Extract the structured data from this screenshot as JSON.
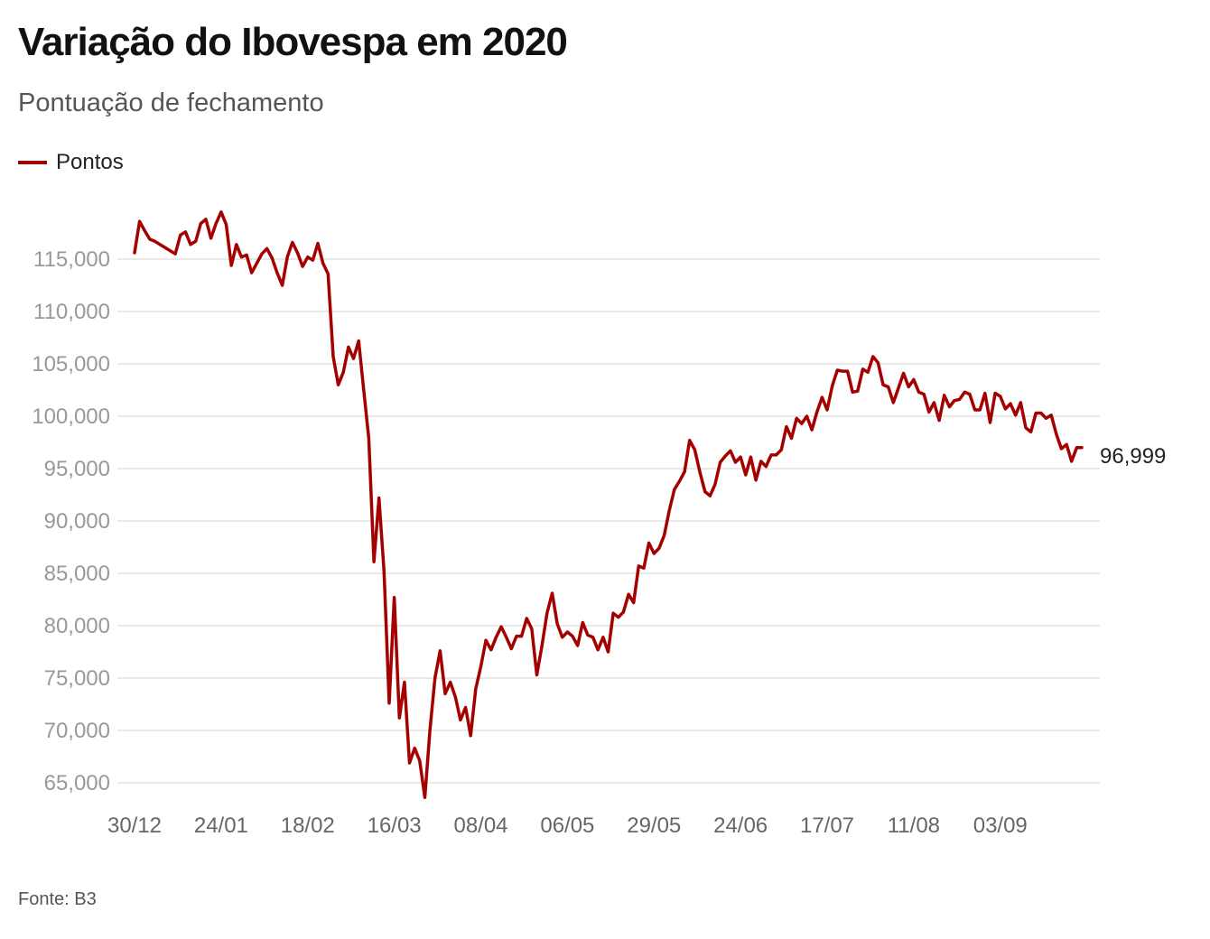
{
  "title": "Variação do Ibovespa em 2020",
  "subtitle": "Pontuação de fechamento",
  "source": "Fonte: B3",
  "chart_data": {
    "type": "line",
    "title": "Variação do Ibovespa em 2020",
    "subtitle": "Pontuação de fechamento",
    "xlabel": "",
    "ylabel": "",
    "ylim": [
      63000,
      118000
    ],
    "y_ticks": [
      65000,
      70000,
      75000,
      80000,
      85000,
      90000,
      95000,
      100000,
      105000,
      110000,
      115000
    ],
    "y_tick_labels": [
      "65,000",
      "70,000",
      "75,000",
      "80,000",
      "85,000",
      "90,000",
      "95,000",
      "100,000",
      "105,000",
      "110,000",
      "115,000"
    ],
    "x_tick_labels": [
      "30/12",
      "24/01",
      "18/02",
      "16/03",
      "08/04",
      "06/05",
      "29/05",
      "24/06",
      "17/07",
      "11/08",
      "03/09"
    ],
    "x_tick_index": [
      0,
      17,
      34,
      51,
      68,
      85,
      102,
      119,
      136,
      153,
      170
    ],
    "grid": true,
    "legend": "top-left",
    "end_label": "96,999",
    "series": [
      {
        "name": "Pontos",
        "color": "#a50000",
        "values": [
          115600,
          118600,
          117700,
          116900,
          116700,
          116400,
          116100,
          115800,
          115500,
          117300,
          117600,
          116400,
          116700,
          118400,
          118800,
          117000,
          118400,
          119500,
          118300,
          114400,
          116400,
          115200,
          115400,
          113700,
          114600,
          115500,
          116000,
          115100,
          113700,
          112500,
          115200,
          116600,
          115600,
          114300,
          115200,
          114900,
          116500,
          114600,
          113600,
          105700,
          103000,
          104200,
          106600,
          105500,
          107200,
          102500,
          97900,
          86100,
          92200,
          85200,
          72600,
          82700,
          71200,
          74600,
          66900,
          68300,
          67100,
          63600,
          70000,
          75000,
          77600,
          73500,
          74600,
          73200,
          71000,
          72200,
          69500,
          74000,
          76100,
          78600,
          77700,
          78900,
          79900,
          78900,
          77800,
          79000,
          79000,
          80700,
          79700,
          75300,
          78100,
          81200,
          83100,
          80200,
          78900,
          79400,
          79000,
          78100,
          80300,
          79100,
          78900,
          77700,
          78900,
          77500,
          81200,
          80800,
          81300,
          83000,
          82200,
          85700,
          85500,
          87900,
          86900,
          87400,
          88600,
          91000,
          93000,
          93800,
          94700,
          97700,
          96800,
          94700,
          92800,
          92400,
          93500,
          95600,
          96200,
          96700,
          95600,
          96100,
          94400,
          96100,
          93900,
          95700,
          95200,
          96300,
          96300,
          96800,
          99000,
          97900,
          99800,
          99300,
          100000,
          98700,
          100400,
          101800,
          100600,
          102900,
          104400,
          104300,
          104300,
          102300,
          102400,
          104500,
          104200,
          105700,
          105100,
          103000,
          102800,
          101300,
          102700,
          104100,
          102800,
          103500,
          102300,
          102100,
          100400,
          101300,
          99600,
          102000,
          100900,
          101500,
          101600,
          102300,
          102100,
          100600,
          100600,
          102200,
          99400,
          102200,
          101900,
          100700,
          101200,
          100100,
          101300,
          98900,
          98500,
          100300,
          100300,
          99800,
          100100,
          98300,
          96900,
          97300,
          95700,
          97000,
          96999
        ]
      }
    ]
  }
}
